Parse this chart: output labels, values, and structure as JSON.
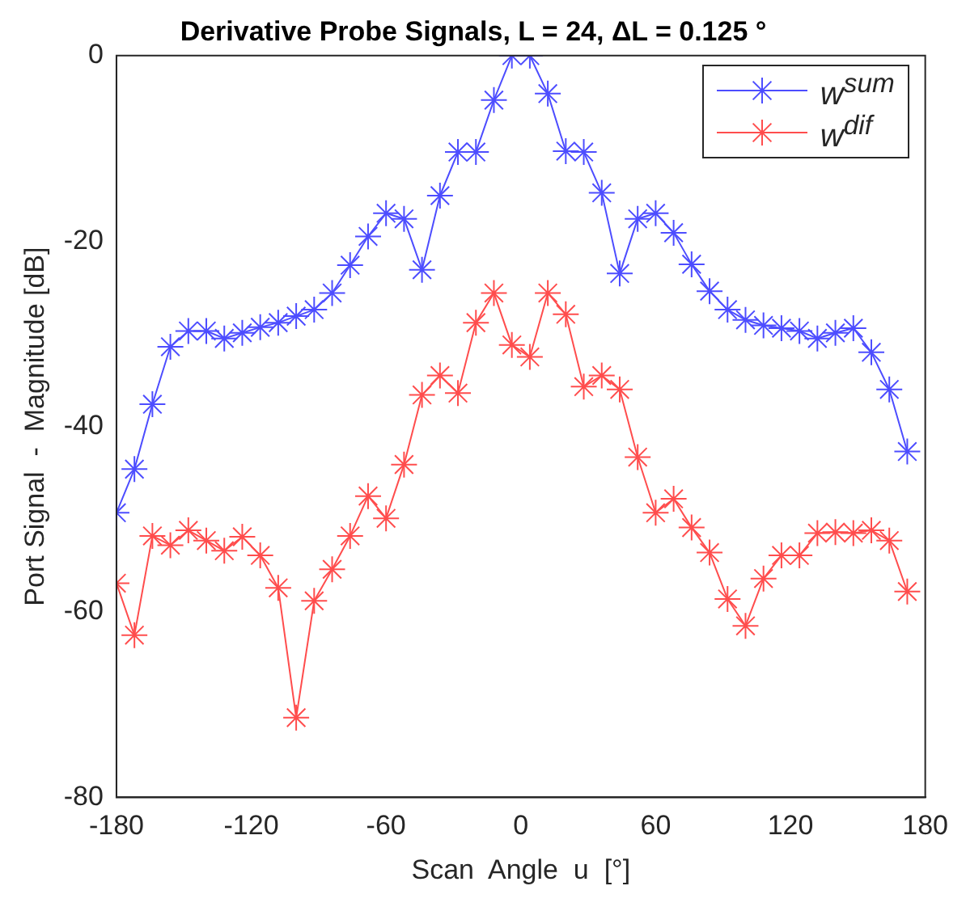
{
  "chart_data": {
    "type": "line",
    "title": "Derivative Probe Signals, L = 24, ΔL = 0.125 °",
    "xlabel": "Scan  Angle  u  [°]",
    "ylabel": "Port Signal  -  Magnitude [dB]",
    "x": [
      -180,
      -172,
      -164,
      -156,
      -148,
      -140,
      -132,
      -124,
      -116,
      -108,
      -100,
      -92,
      -84,
      -76,
      -68,
      -60,
      -52,
      -44,
      -36,
      -28,
      -20,
      -12,
      -4,
      4,
      12,
      20,
      28,
      36,
      44,
      52,
      60,
      68,
      76,
      84,
      92,
      100,
      108,
      116,
      124,
      132,
      140,
      148,
      156,
      164,
      172
    ],
    "series": [
      {
        "name": "w$^{sum}$",
        "color": "#4d4dff",
        "values": [
          -49.3,
          -44.6,
          -37.6,
          -31.4,
          -29.7,
          -29.7,
          -30.5,
          -29.9,
          -29.3,
          -28.8,
          -28.1,
          -27.4,
          -25.6,
          -22.6,
          -19.5,
          -17.0,
          -17.6,
          -23.1,
          -15.1,
          -10.4,
          -10.4,
          -4.8,
          0,
          0,
          -4.1,
          -10.3,
          -10.4,
          -14.8,
          -23.5,
          -17.6,
          -17.0,
          -19.1,
          -22.5,
          -25.4,
          -27.4,
          -28.5,
          -29.1,
          -29.4,
          -29.7,
          -30.5,
          -29.9,
          -29.4,
          -32.0,
          -36.0,
          -42.7
        ]
      },
      {
        "name": "w$^{dif}$",
        "color": "#ff4d4d",
        "values": [
          -56.9,
          -62.5,
          -51.8,
          -52.8,
          -51.2,
          -52.3,
          -53.4,
          -51.9,
          -53.9,
          -57.4,
          -71.4,
          -58.8,
          -55.4,
          -51.8,
          -47.5,
          -49.9,
          -44.1,
          -36.6,
          -34.5,
          -36.4,
          -28.8,
          -25.6,
          -31.2,
          -32.5,
          -25.6,
          -27.9,
          -35.7,
          -34.5,
          -36.0,
          -43.3,
          -49.3,
          -47.8,
          -50.9,
          -53.6,
          -58.6,
          -61.5,
          -56.4,
          -53.9,
          -53.9,
          -51.5,
          -51.4,
          -51.5,
          -51.2,
          -52.3,
          -57.8
        ]
      }
    ],
    "xlim": [
      -180,
      180
    ],
    "xticks": [
      -180,
      -120,
      -60,
      0,
      60,
      120,
      180
    ],
    "ylim": [
      -80,
      0
    ],
    "yticks": [
      -80,
      -60,
      -40,
      -20,
      0
    ],
    "grid": false,
    "legend": "top right",
    "marker": "cross",
    "line_style": "solid"
  }
}
